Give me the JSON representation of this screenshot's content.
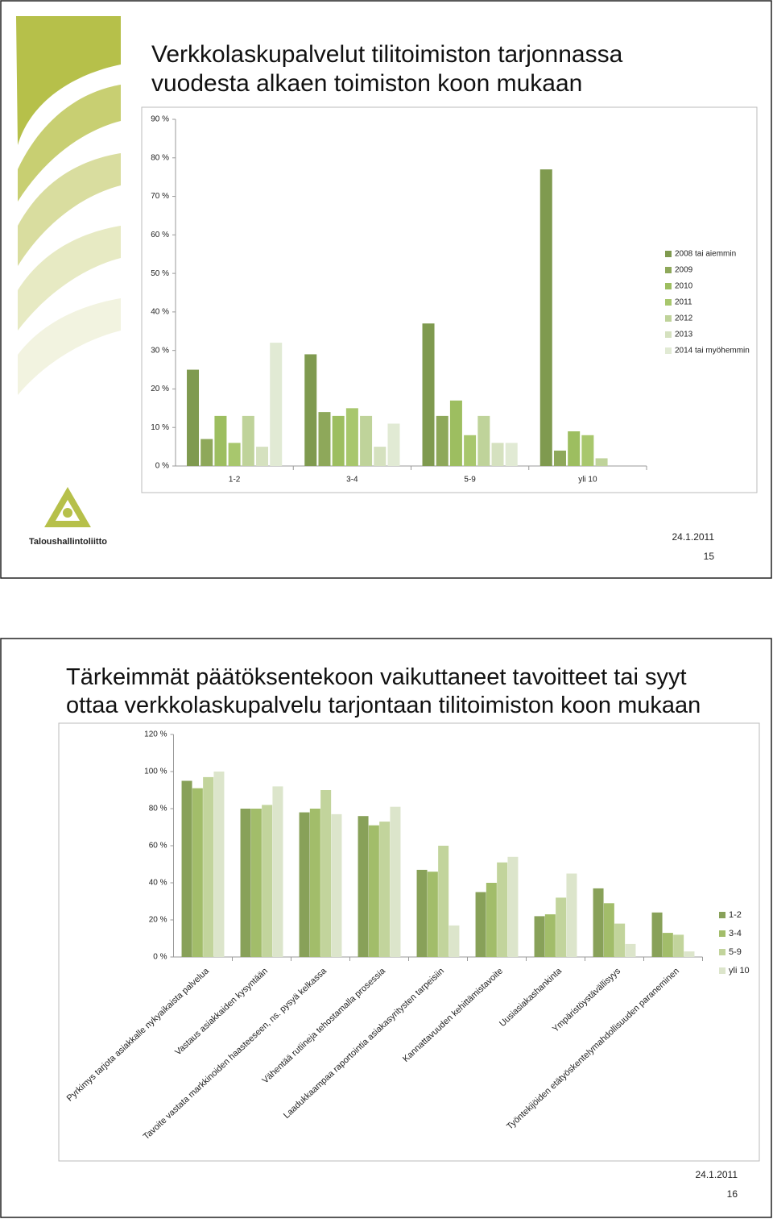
{
  "chart_data": [
    {
      "type": "bar",
      "title": "Verkkolaskupalvelut tilitoimiston tarjonnassa vuodesta alkaen toimiston koon mukaan",
      "categories": [
        "1-2",
        "3-4",
        "5-9",
        "yli 10"
      ],
      "series": [
        {
          "name": "2008 tai aiemmin",
          "color": "#7f9a4f",
          "values": [
            25,
            29,
            37,
            77
          ]
        },
        {
          "name": "2009",
          "color": "#8ea85a",
          "values": [
            7,
            14,
            13,
            4
          ]
        },
        {
          "name": "2010",
          "color": "#9dbe60",
          "values": [
            13,
            13,
            17,
            9
          ]
        },
        {
          "name": "2011",
          "color": "#a8c76d",
          "values": [
            6,
            15,
            8,
            8
          ]
        },
        {
          "name": "2012",
          "color": "#bfd39a",
          "values": [
            13,
            13,
            13,
            2
          ]
        },
        {
          "name": "2013",
          "color": "#d5e1bf",
          "values": [
            5,
            5,
            6,
            null
          ]
        },
        {
          "name": "2014 tai myöhemmin",
          "color": "#e1ead4",
          "values": [
            32,
            11,
            6,
            null
          ]
        }
      ],
      "ylim": [
        0,
        90
      ],
      "yticks": [
        {
          "value": 0,
          "label": "0 %"
        },
        {
          "value": 10,
          "label": "10 %"
        },
        {
          "value": 20,
          "label": "20 %"
        },
        {
          "value": 30,
          "label": "30 %"
        },
        {
          "value": 40,
          "label": "40 %"
        },
        {
          "value": 50,
          "label": "50 %"
        },
        {
          "value": 60,
          "label": "60 %"
        },
        {
          "value": 70,
          "label": "70 %"
        },
        {
          "value": 80,
          "label": "80 %"
        },
        {
          "value": 90,
          "label": "90 %"
        }
      ],
      "grid": false,
      "legend": "right"
    },
    {
      "type": "bar",
      "title": "Tärkeimmät päätöksentekoon vaikuttaneet tavoitteet tai syyt ottaa verkkolaskupalvelu tarjontaan tilitoimiston koon mukaan",
      "categories": [
        "Pyrkimys tarjota asiakkalle nykyaikaista palvelua",
        "Vastaus asiakkaiden kysyntään",
        "Tavoite vastata markkinoiden haasteeseen, ns. pysyä kelkassa",
        "Vähentää rutiineja tehostamalla prosessia",
        "Laadukkaampaa raportointia asiakasyritysten tarpeisiin",
        "Kannattavuuden kehittämistavoite",
        "Uusiasiakashankinta",
        "Ympäristöystävällisyys",
        "Työntekijöiden etätyöskentelymahdollisuuden paraneminen"
      ],
      "series": [
        {
          "name": "1-2",
          "color": "#88a159",
          "values": [
            95,
            80,
            78,
            76,
            47,
            35,
            22,
            37,
            24
          ]
        },
        {
          "name": "3-4",
          "color": "#a2bd6a",
          "values": [
            91,
            80,
            80,
            71,
            46,
            40,
            23,
            29,
            13
          ]
        },
        {
          "name": "5-9",
          "color": "#c2d49c",
          "values": [
            97,
            82,
            90,
            73,
            60,
            51,
            32,
            18,
            12
          ]
        },
        {
          "name": "yli 10",
          "color": "#dce5cb",
          "values": [
            100,
            92,
            77,
            81,
            17,
            54,
            45,
            7,
            3
          ]
        }
      ],
      "ylim": [
        0,
        120
      ],
      "yticks": [
        {
          "value": 0,
          "label": "0 %"
        },
        {
          "value": 20,
          "label": "20 %"
        },
        {
          "value": 40,
          "label": "40 %"
        },
        {
          "value": 60,
          "label": "60 %"
        },
        {
          "value": 80,
          "label": "80 %"
        },
        {
          "value": 100,
          "label": "100 %"
        },
        {
          "value": 120,
          "label": "120 %"
        }
      ],
      "grid": false,
      "legend": "right"
    }
  ],
  "slides": [
    {
      "date": "24.1.2011",
      "page": "15"
    },
    {
      "date": "24.1.2011",
      "page": "16"
    }
  ],
  "logo_text": "Taloushallintoliitto"
}
